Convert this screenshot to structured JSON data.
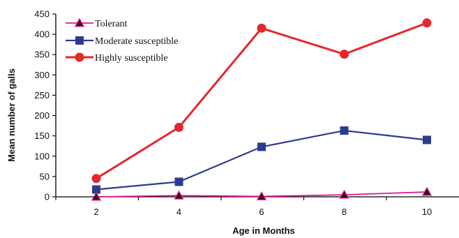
{
  "chart_data": {
    "type": "line",
    "x": [
      2,
      4,
      6,
      8,
      10
    ],
    "series": [
      {
        "name": "Tolerant",
        "values": [
          0,
          3,
          1,
          5,
          12
        ],
        "color": "#e0148c",
        "marker": "triangle"
      },
      {
        "name": "Moderate susceptible",
        "values": [
          18,
          37,
          123,
          163,
          140
        ],
        "color": "#2e3a92",
        "marker": "square"
      },
      {
        "name": "Highly susceptible",
        "values": [
          45,
          171,
          415,
          351,
          428
        ],
        "color": "#e4272d",
        "marker": "circle"
      }
    ],
    "xlabel": "Age in Months",
    "ylabel": "Mean number of galls",
    "ylim": [
      0,
      450
    ],
    "yticks": [
      0,
      50,
      100,
      150,
      200,
      250,
      300,
      350,
      400,
      450
    ],
    "xticks": [
      2,
      4,
      6,
      8,
      10
    ],
    "legend_position": "top-left",
    "grid": false
  }
}
